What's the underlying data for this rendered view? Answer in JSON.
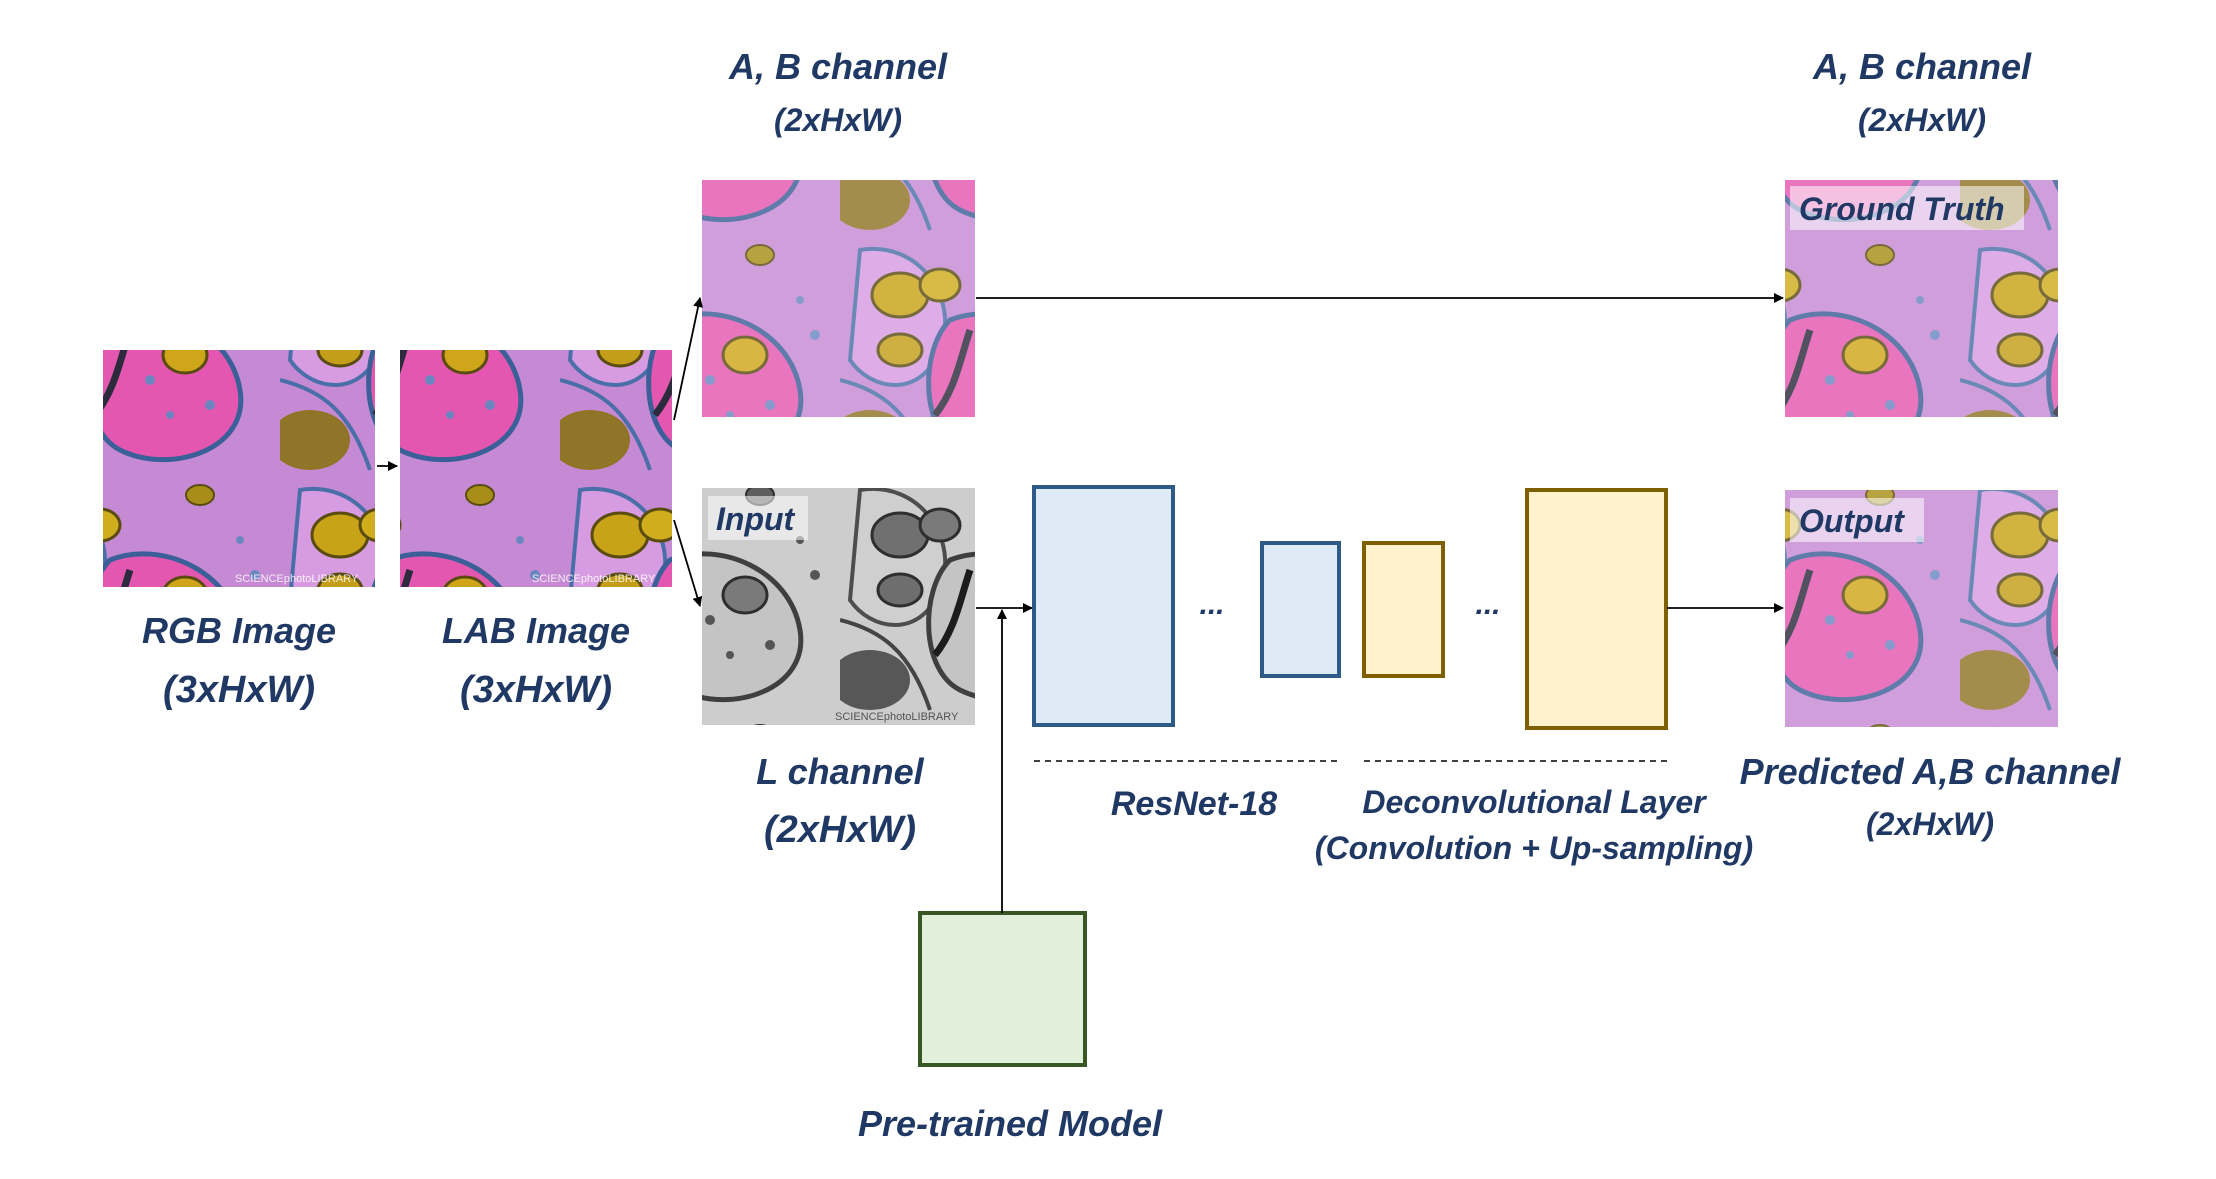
{
  "nodes": {
    "rgb_image": {
      "title": "RGB Image",
      "shape": "(3xHxW)"
    },
    "lab_image": {
      "title": "LAB Image",
      "shape": "(3xHxW)"
    },
    "ab_channel_top": {
      "title": "A, B channel",
      "shape": "(2xHxW)"
    },
    "l_channel": {
      "title": "L channel",
      "shape": "(2xHxW)",
      "tag": "Input"
    },
    "ground_truth": {
      "title": "A, B channel",
      "shape": "(2xHxW)",
      "tag": "Ground Truth"
    },
    "output": {
      "title": "Predicted A,B channel",
      "shape": "(2xHxW)",
      "tag": "Output"
    },
    "pretrained": {
      "title": "Pre-trained Model"
    }
  },
  "groups": {
    "resnet": {
      "label": "ResNet-18",
      "ellipsis": "..."
    },
    "deconv": {
      "label": "Deconvolutional Layer",
      "sublabel": "(Convolution + Up-sampling)",
      "ellipsis": "..."
    }
  },
  "watermark": "SCIENCEphotoLIBRARY",
  "colors": {
    "text": "#1f3864",
    "encoder_fill": "#deebf7",
    "encoder_stroke": "#2e5a88",
    "decoder_fill": "#fff2cc",
    "decoder_stroke": "#7f6000",
    "pretrained_fill": "#e2efda",
    "pretrained_stroke": "#385723",
    "arrow": "#000000"
  }
}
